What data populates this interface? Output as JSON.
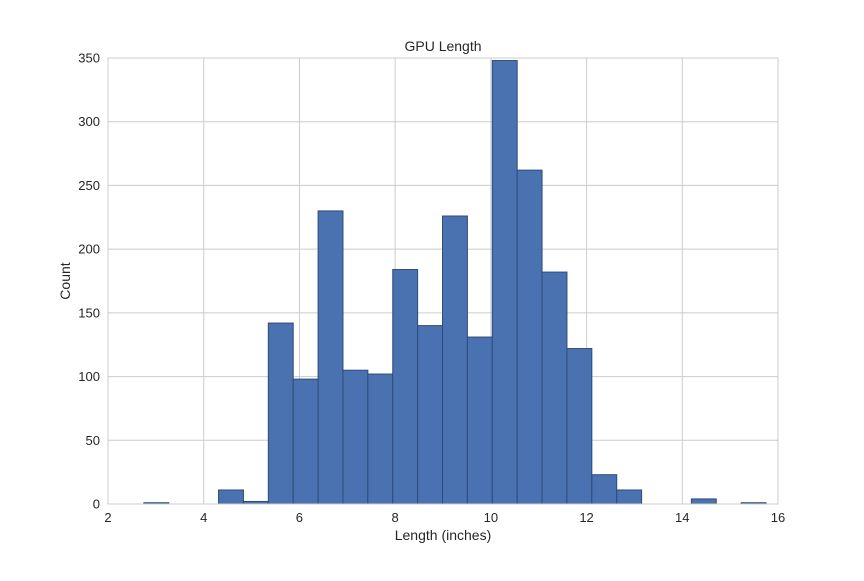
{
  "chart_data": {
    "type": "bar",
    "subtype": "histogram",
    "title": "GPU Length",
    "xlabel": "Length (inches)",
    "ylabel": "Count",
    "xlim": [
      2,
      16
    ],
    "ylim": [
      0,
      350
    ],
    "xticks": [
      2,
      4,
      6,
      8,
      10,
      12,
      14,
      16
    ],
    "yticks": [
      0,
      50,
      100,
      150,
      200,
      250,
      300,
      350
    ],
    "grid": true,
    "bar_color": "#4a72b0",
    "bar_edge_color": "#2e4c78",
    "bins": [
      {
        "x0": 2.75,
        "x1": 3.27,
        "count": 1
      },
      {
        "x0": 3.27,
        "x1": 3.79,
        "count": 0
      },
      {
        "x0": 3.79,
        "x1": 4.31,
        "count": 0
      },
      {
        "x0": 4.31,
        "x1": 4.83,
        "count": 11
      },
      {
        "x0": 4.83,
        "x1": 5.35,
        "count": 2
      },
      {
        "x0": 5.35,
        "x1": 5.87,
        "count": 142
      },
      {
        "x0": 5.87,
        "x1": 6.39,
        "count": 98
      },
      {
        "x0": 6.39,
        "x1": 6.91,
        "count": 230
      },
      {
        "x0": 6.91,
        "x1": 7.43,
        "count": 105
      },
      {
        "x0": 7.43,
        "x1": 7.95,
        "count": 102
      },
      {
        "x0": 7.95,
        "x1": 8.47,
        "count": 184
      },
      {
        "x0": 8.47,
        "x1": 8.99,
        "count": 140
      },
      {
        "x0": 8.99,
        "x1": 9.51,
        "count": 226
      },
      {
        "x0": 9.51,
        "x1": 10.03,
        "count": 131
      },
      {
        "x0": 10.03,
        "x1": 10.55,
        "count": 348
      },
      {
        "x0": 10.55,
        "x1": 11.07,
        "count": 262
      },
      {
        "x0": 11.07,
        "x1": 11.59,
        "count": 182
      },
      {
        "x0": 11.59,
        "x1": 12.11,
        "count": 122
      },
      {
        "x0": 12.11,
        "x1": 12.63,
        "count": 23
      },
      {
        "x0": 12.63,
        "x1": 13.15,
        "count": 11
      },
      {
        "x0": 13.15,
        "x1": 13.67,
        "count": 0
      },
      {
        "x0": 13.67,
        "x1": 14.19,
        "count": 0
      },
      {
        "x0": 14.19,
        "x1": 14.71,
        "count": 4
      },
      {
        "x0": 14.71,
        "x1": 15.23,
        "count": 0
      },
      {
        "x0": 15.23,
        "x1": 15.75,
        "count": 1
      }
    ]
  }
}
